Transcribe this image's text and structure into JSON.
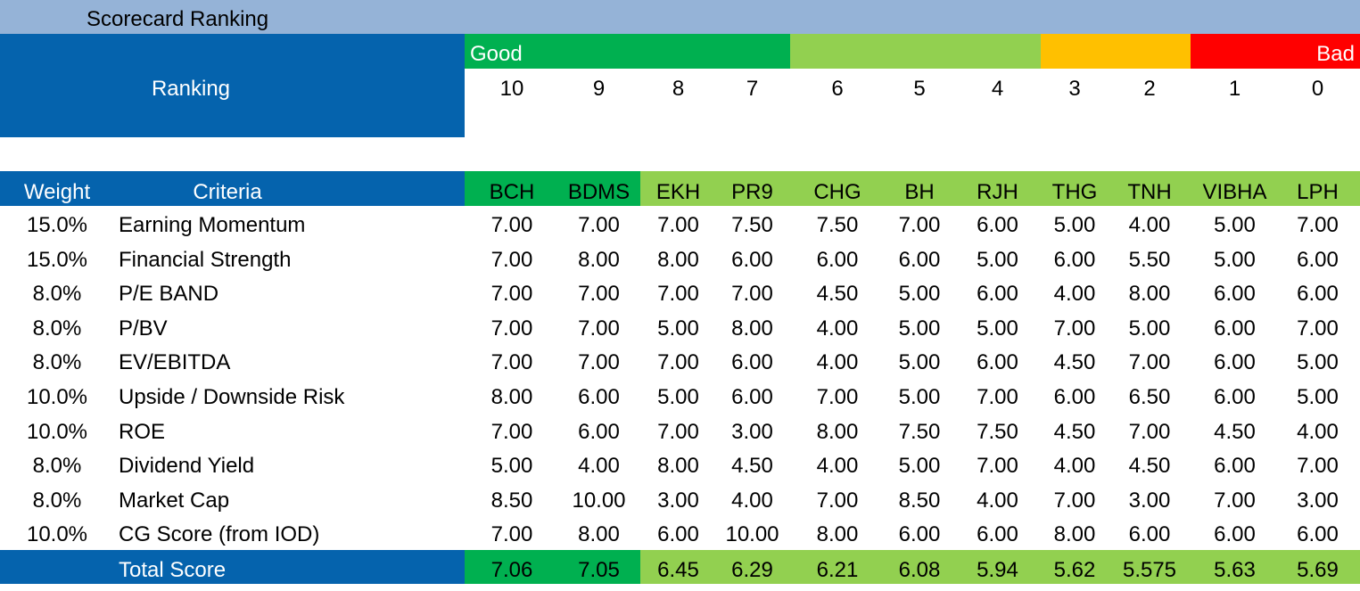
{
  "title": "Scorecard Ranking",
  "ranking_label": "Ranking",
  "band_good": "Good",
  "band_bad": "Bad",
  "colors": {
    "good": "#00b050",
    "ok": "#92d050",
    "warn": "#ffc000",
    "bad": "#ff0000",
    "blue": "#0563ad",
    "title_bg": "#95b3d7"
  },
  "scale": [
    "10",
    "9",
    "8",
    "7",
    "6",
    "5",
    "4",
    "3",
    "2",
    "1",
    "0"
  ],
  "headers": {
    "weight": "Weight",
    "criteria": "Criteria"
  },
  "companies": [
    "BCH",
    "BDMS",
    "EKH",
    "PR9",
    "CHG",
    "BH",
    "RJH",
    "THG",
    "TNH",
    "VIBHA",
    "LPH"
  ],
  "rows": [
    {
      "weight": "15.0%",
      "criteria": "Earning Momentum",
      "values": [
        "7.00",
        "7.00",
        "7.00",
        "7.50",
        "7.50",
        "7.00",
        "6.00",
        "5.00",
        "4.00",
        "5.00",
        "7.00"
      ]
    },
    {
      "weight": "15.0%",
      "criteria": "Financial Strength",
      "values": [
        "7.00",
        "8.00",
        "8.00",
        "6.00",
        "6.00",
        "6.00",
        "5.00",
        "6.00",
        "5.50",
        "5.00",
        "6.00"
      ]
    },
    {
      "weight": "8.0%",
      "criteria": "P/E BAND",
      "values": [
        "7.00",
        "7.00",
        "7.00",
        "7.00",
        "4.50",
        "5.00",
        "6.00",
        "4.00",
        "8.00",
        "6.00",
        "6.00"
      ]
    },
    {
      "weight": "8.0%",
      "criteria": "P/BV",
      "values": [
        "7.00",
        "7.00",
        "5.00",
        "8.00",
        "4.00",
        "5.00",
        "5.00",
        "7.00",
        "5.00",
        "6.00",
        "7.00"
      ]
    },
    {
      "weight": "8.0%",
      "criteria": "EV/EBITDA",
      "values": [
        "7.00",
        "7.00",
        "7.00",
        "6.00",
        "4.00",
        "5.00",
        "6.00",
        "4.50",
        "7.00",
        "6.00",
        "5.00"
      ]
    },
    {
      "weight": "10.0%",
      "criteria": "Upside / Downside Risk",
      "values": [
        "8.00",
        "6.00",
        "5.00",
        "6.00",
        "7.00",
        "5.00",
        "7.00",
        "6.00",
        "6.50",
        "6.00",
        "5.00"
      ]
    },
    {
      "weight": "10.0%",
      "criteria": "ROE",
      "values": [
        "7.00",
        "6.00",
        "7.00",
        "3.00",
        "8.00",
        "7.50",
        "7.50",
        "4.50",
        "7.00",
        "4.50",
        "4.00"
      ]
    },
    {
      "weight": "8.0%",
      "criteria": "Dividend Yield",
      "values": [
        "5.00",
        "4.00",
        "8.00",
        "4.50",
        "4.00",
        "5.00",
        "7.00",
        "4.00",
        "4.50",
        "6.00",
        "7.00"
      ]
    },
    {
      "weight": "8.0%",
      "criteria": "Market Cap",
      "values": [
        "8.50",
        "10.00",
        "3.00",
        "4.00",
        "7.00",
        "8.50",
        "4.00",
        "7.00",
        "3.00",
        "7.00",
        "3.00"
      ]
    },
    {
      "weight": "10.0%",
      "criteria": "CG Score (from IOD)",
      "values": [
        "7.00",
        "8.00",
        "6.00",
        "10.00",
        "8.00",
        "6.00",
        "6.00",
        "8.00",
        "6.00",
        "6.00",
        "6.00"
      ]
    }
  ],
  "total": {
    "label": "Total Score",
    "values": [
      "7.06",
      "7.05",
      "6.45",
      "6.29",
      "6.21",
      "6.08",
      "5.94",
      "5.62",
      "5.575",
      "5.63",
      "5.69"
    ]
  }
}
